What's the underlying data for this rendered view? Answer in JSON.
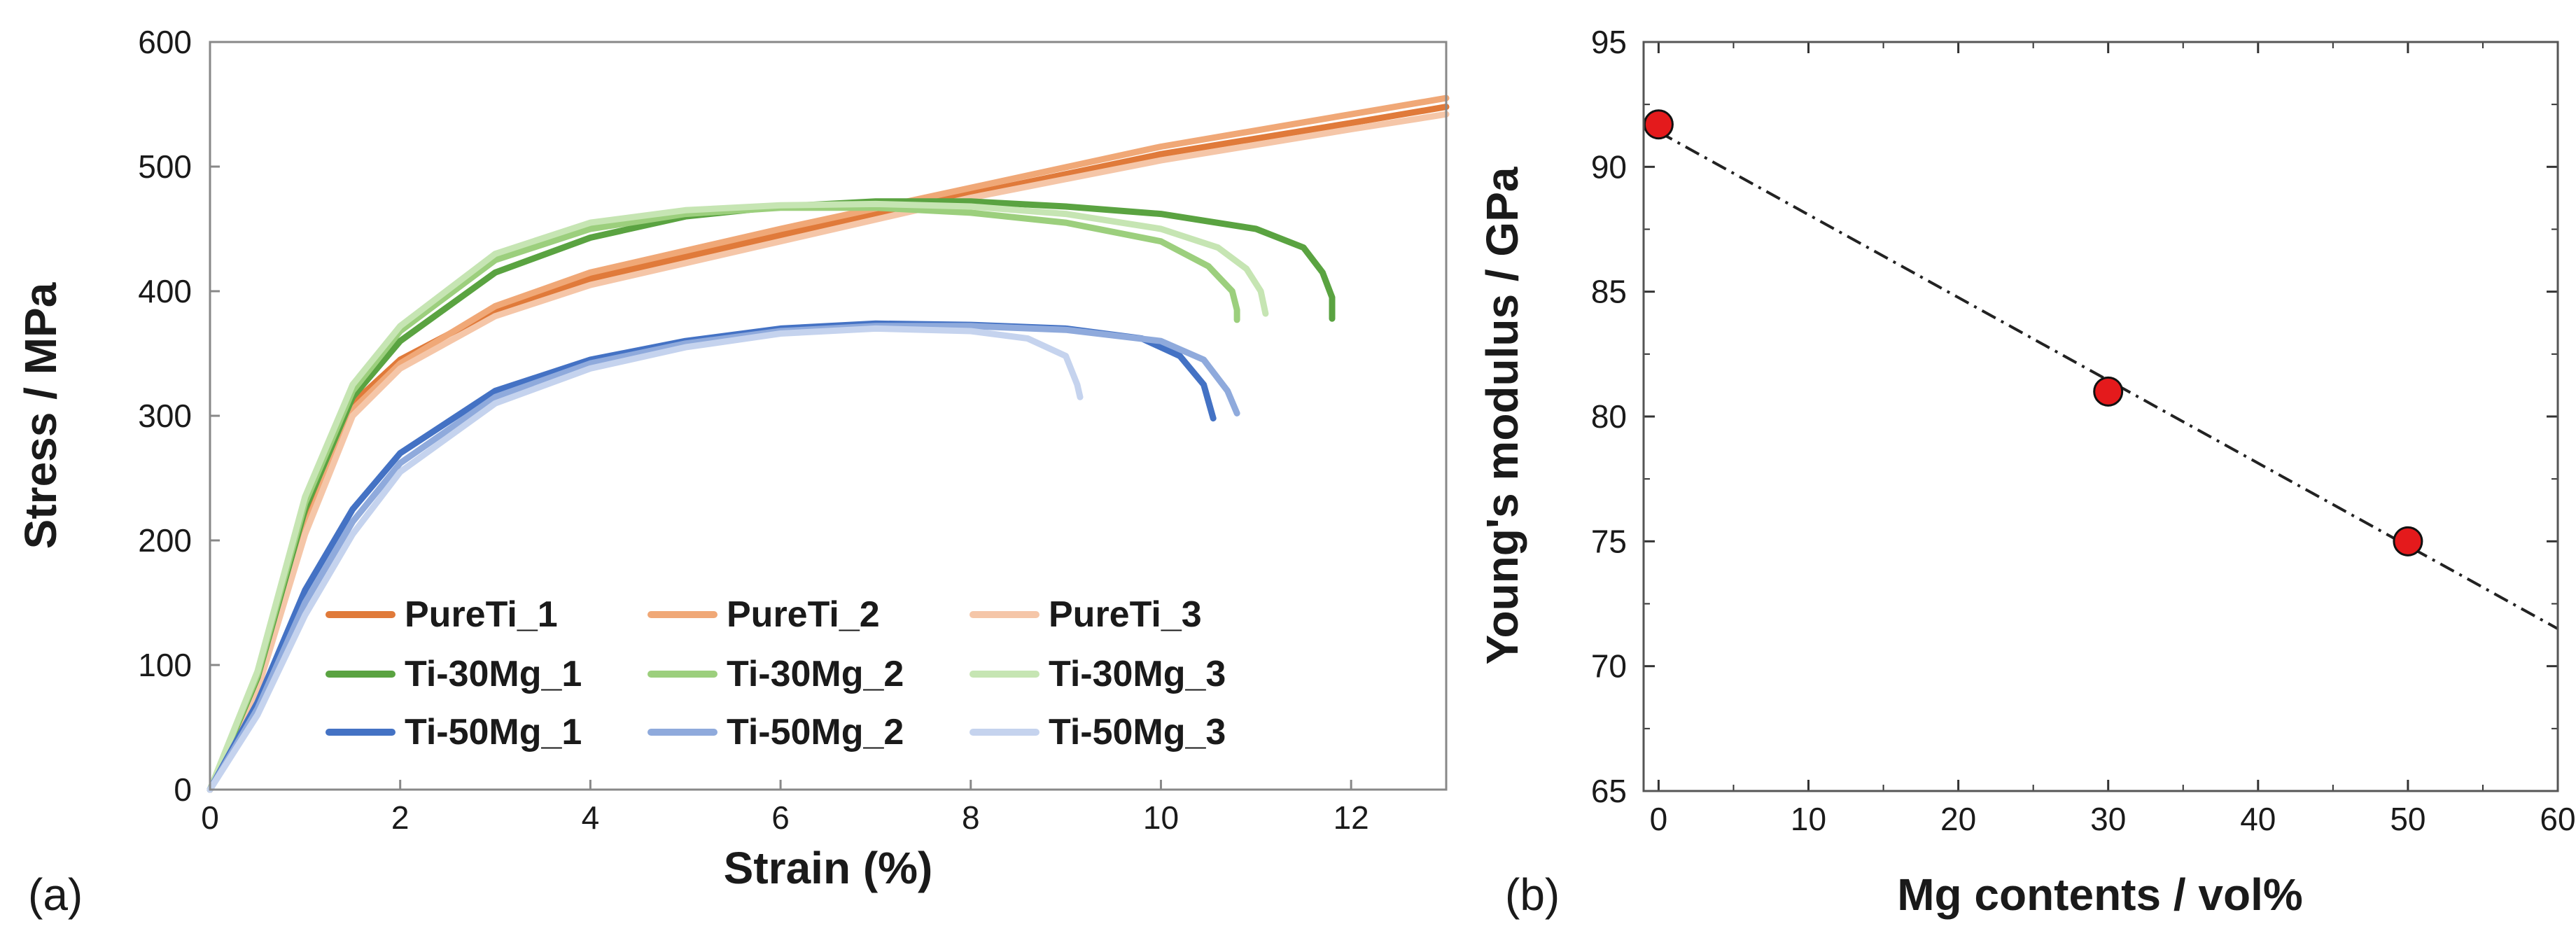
{
  "chart_data": [
    {
      "type": "line",
      "panel_label": "(a)",
      "xlabel": "Strain (%)",
      "ylabel": "Stress / MPa",
      "xlim": [
        0,
        13
      ],
      "ylim": [
        0,
        600
      ],
      "xticks": [
        0,
        2,
        4,
        6,
        8,
        10,
        12
      ],
      "yticks": [
        0,
        100,
        200,
        300,
        400,
        500,
        600
      ],
      "legend_position": "bottom-right",
      "series": [
        {
          "name": "PureTi_1",
          "color": "#e07a3a",
          "x": [
            0,
            0.5,
            1.0,
            1.5,
            2,
            3,
            4,
            6,
            8,
            10,
            12,
            13
          ],
          "y": [
            0,
            85,
            215,
            310,
            345,
            385,
            410,
            445,
            478,
            510,
            535,
            548
          ]
        },
        {
          "name": "PureTi_2",
          "color": "#f0a877",
          "x": [
            0,
            0.5,
            1.0,
            1.5,
            2,
            3,
            4,
            6,
            8,
            10,
            12,
            13
          ],
          "y": [
            0,
            83,
            210,
            305,
            342,
            388,
            415,
            450,
            483,
            516,
            542,
            555
          ]
        },
        {
          "name": "PureTi_3",
          "color": "#f5c6a8",
          "x": [
            0,
            0.5,
            1.0,
            1.5,
            2,
            3,
            4,
            6,
            8,
            10,
            12,
            13
          ],
          "y": [
            0,
            80,
            205,
            300,
            338,
            380,
            405,
            440,
            475,
            505,
            530,
            542
          ]
        },
        {
          "name": "Ti-30Mg_1",
          "color": "#5aa341",
          "x": [
            0,
            0.5,
            1.0,
            1.5,
            2,
            3,
            4,
            5,
            6,
            7,
            8,
            9,
            10,
            11,
            11.5,
            11.7,
            11.8,
            11.8
          ],
          "y": [
            0,
            90,
            225,
            315,
            360,
            415,
            443,
            460,
            468,
            472,
            472,
            468,
            462,
            450,
            435,
            415,
            395,
            378
          ]
        },
        {
          "name": "Ti-30Mg_2",
          "color": "#9ccf7d",
          "x": [
            0,
            0.5,
            1.0,
            1.5,
            2,
            3,
            4,
            5,
            6,
            7,
            8,
            9,
            10,
            10.5,
            10.75,
            10.8,
            10.8
          ],
          "y": [
            0,
            92,
            230,
            320,
            368,
            425,
            450,
            462,
            467,
            467,
            463,
            455,
            440,
            420,
            400,
            385,
            377
          ]
        },
        {
          "name": "Ti-30Mg_3",
          "color": "#c6e5b3",
          "x": [
            0,
            0.5,
            1.0,
            1.5,
            2,
            3,
            4,
            5,
            6,
            7,
            8,
            9,
            10,
            10.6,
            10.9,
            11.05,
            11.1
          ],
          "y": [
            0,
            95,
            235,
            325,
            372,
            430,
            455,
            465,
            469,
            470,
            468,
            462,
            450,
            435,
            418,
            400,
            382
          ]
        },
        {
          "name": "Ti-50Mg_1",
          "color": "#4472c4",
          "x": [
            0,
            0.5,
            1.0,
            1.5,
            2,
            3,
            4,
            5,
            6,
            7,
            8,
            9,
            9.8,
            10.2,
            10.45,
            10.55
          ],
          "y": [
            0,
            70,
            160,
            225,
            270,
            320,
            345,
            360,
            370,
            374,
            373,
            370,
            362,
            348,
            325,
            298
          ]
        },
        {
          "name": "Ti-50Mg_2",
          "color": "#8faadc",
          "x": [
            0,
            0.5,
            1.0,
            1.5,
            2,
            3,
            4,
            5,
            6,
            7,
            8,
            9,
            10,
            10.45,
            10.7,
            10.8
          ],
          "y": [
            0,
            65,
            150,
            215,
            262,
            315,
            342,
            358,
            368,
            372,
            372,
            369,
            360,
            345,
            320,
            302
          ]
        },
        {
          "name": "Ti-50Mg_3",
          "color": "#c5d3ee",
          "x": [
            0,
            0.5,
            1.0,
            1.5,
            2,
            3,
            4,
            5,
            6,
            7,
            8,
            8.6,
            9.0,
            9.12,
            9.15
          ],
          "y": [
            0,
            60,
            140,
            205,
            255,
            310,
            338,
            355,
            366,
            370,
            368,
            362,
            348,
            325,
            315
          ]
        }
      ],
      "legend": {
        "rows": [
          [
            "PureTi_1",
            "PureTi_2",
            "PureTi_3"
          ],
          [
            "Ti-30Mg_1",
            "Ti-30Mg_2",
            "Ti-30Mg_3"
          ],
          [
            "Ti-50Mg_1",
            "Ti-50Mg_2",
            "Ti-50Mg_3"
          ]
        ]
      }
    },
    {
      "type": "scatter",
      "panel_label": "(b)",
      "xlabel": "Mg contents / vol%",
      "ylabel": "Young's modulus / GPa",
      "xlim": [
        -1,
        60
      ],
      "ylim": [
        65,
        95
      ],
      "xticks": [
        0,
        10,
        20,
        30,
        40,
        50,
        60
      ],
      "yticks": [
        65,
        70,
        75,
        80,
        85,
        90,
        95
      ],
      "points": {
        "x": [
          0,
          30,
          50
        ],
        "y": [
          91.7,
          81.0,
          75.0
        ]
      },
      "marker_color": "#e41a1c",
      "trendline": {
        "style": "dash-dot",
        "x": [
          0,
          60
        ],
        "y": [
          91.4,
          71.5
        ]
      }
    }
  ]
}
